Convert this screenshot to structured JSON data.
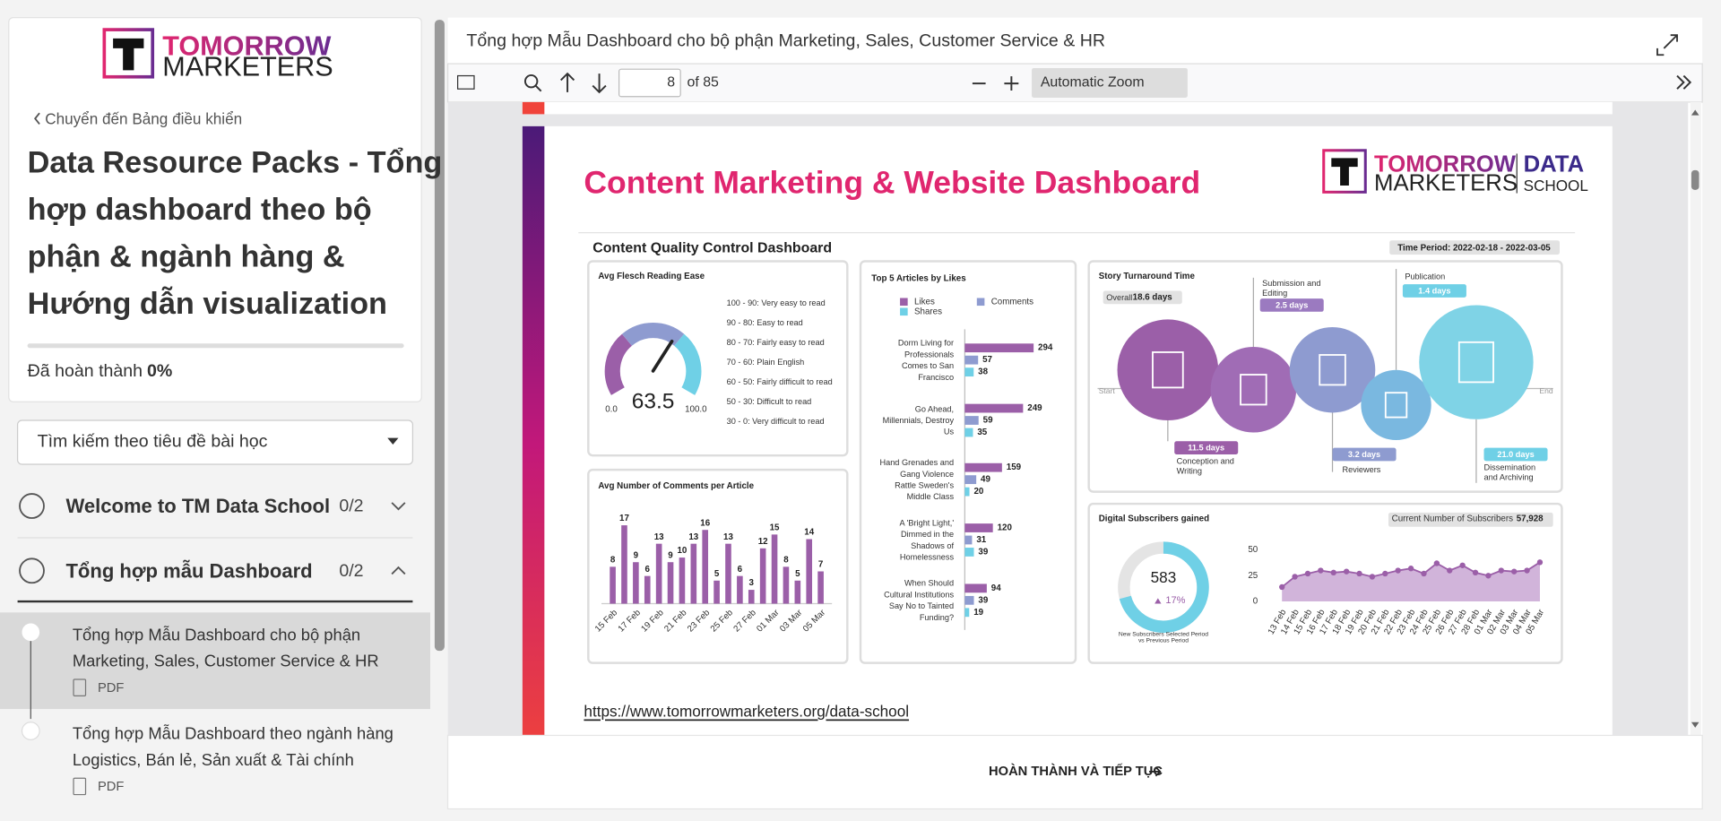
{
  "sidebar": {
    "logo": {
      "line1": "TOMORROW",
      "line2": "MARKETERS"
    },
    "back_link": "Chuyển đến Bảng điều khiển",
    "course_title": [
      "Data Resource Packs - Tổng",
      "hợp dashboard theo bộ",
      "phận & ngành hàng &",
      "Hướng dẫn visualization"
    ],
    "progress_label": "Đã hoàn thành",
    "progress_value": "0%",
    "search_placeholder": "Tìm kiếm theo tiêu đề bài học",
    "sections": [
      {
        "title": "Welcome to TM Data School",
        "count": "0/2"
      },
      {
        "title": "Tổng hợp mẫu Dashboard",
        "count": "0/2"
      }
    ],
    "lessons": [
      {
        "title": [
          "Tổng hợp Mẫu Dashboard cho bộ phận",
          "Marketing, Sales, Customer Service & HR"
        ],
        "type": "PDF"
      },
      {
        "title": [
          "Tổng hợp Mẫu Dashboard theo ngành hàng",
          "Logistics, Bán lẻ, Sản xuất & Tài chính"
        ],
        "type": "PDF"
      }
    ]
  },
  "viewer": {
    "title": "Tổng hợp Mẫu Dashboard cho bộ phận Marketing, Sales, Customer Service & HR",
    "page_number": "8",
    "page_total": "of 85",
    "zoom": "Automatic Zoom",
    "complete_button": "HOÀN THÀNH VÀ TIẾP TỤC"
  },
  "dashboard": {
    "title": "Content Marketing & Website Dashboard",
    "logo": {
      "line1": "TOMORROW",
      "line2": "MARKETERS",
      "brand1": "DATA",
      "brand2": "SCHOOL"
    },
    "subtitle": "Content Quality Control Dashboard",
    "time_period": "Time Period: 2022-02-18 - 2022-03-05",
    "story": {
      "title": "Story Turnaround Time",
      "overall_label": "Overall",
      "overall_value": "18.6 days",
      "start": "Start",
      "end": "End",
      "stages": [
        {
          "value": "11.5 days",
          "label": [
            "Conception and",
            "Writing"
          ]
        },
        {
          "value": "2.5 days",
          "label": [
            "Submission and",
            "Editing"
          ]
        },
        {
          "value": "3.2 days",
          "label": [
            "Reviewers"
          ]
        },
        {
          "value": "1.4 days",
          "label": [
            "Publication"
          ]
        },
        {
          "value": "21.0 days",
          "label": [
            "Dissemination",
            "and Archiving"
          ]
        }
      ]
    },
    "subscribers": {
      "title": "Digital Subscribers gained",
      "current_label": "Current Number of Subscribers",
      "current_value": "57,928",
      "kpi": "583",
      "change": "17%",
      "kpi_caption": [
        "New Subscribers Selected Period",
        "vs Previous Period"
      ]
    },
    "link": "https://www.tomorrowmarketers.org/data-school"
  },
  "chart_data": [
    {
      "type": "gauge",
      "title": "Avg Flesch Reading Ease",
      "value": 63.5,
      "range": [
        {
          "value": 0,
          "label": "0.0"
        },
        {
          "value": 100,
          "label": "100.0"
        }
      ],
      "scale_legend": [
        "100 - 90: Very easy to read",
        "90 - 80: Easy to read",
        "80 - 70: Fairly easy to read",
        "70 - 60: Plain English",
        "60 - 50: Fairly difficult to read",
        "50 - 30: Difficult to read",
        "30 - 0: Very difficult to read"
      ],
      "colors": [
        "#9b5fa8",
        "#8e9bd0",
        "#6fd0e6"
      ]
    },
    {
      "type": "hbar",
      "title": "Top 5 Articles by Likes",
      "categories": [
        [
          "Dorm Living for",
          "Professionals",
          "Comes to San",
          "Francisco"
        ],
        [
          "Go Ahead,",
          "Millennials, Destroy",
          "Us"
        ],
        [
          "Hand Grenades and",
          "Gang Violence",
          "Rattle Sweden's",
          "Middle Class"
        ],
        [
          "A 'Bright Light,'",
          "Dimmed in the",
          "Shadows of",
          "Homelessness"
        ],
        [
          "When Should",
          "Cultural Institutions",
          "Say No to Tainted",
          "Funding?"
        ]
      ],
      "series": [
        {
          "name": "Likes",
          "color": "#9b5fa8",
          "values": [
            294,
            249,
            159,
            120,
            94
          ]
        },
        {
          "name": "Comments",
          "color": "#8e9bd0",
          "values": [
            57,
            59,
            49,
            31,
            39
          ]
        },
        {
          "name": "Shares",
          "color": "#6fd0e6",
          "values": [
            38,
            35,
            20,
            39,
            19
          ]
        }
      ],
      "xlim": [
        0,
        300
      ]
    },
    {
      "type": "bar",
      "title": "Avg Number of Comments per Article",
      "categories": [
        "15 Feb",
        null,
        "17 Feb",
        null,
        "19 Feb",
        null,
        "21 Feb",
        null,
        "23 Feb",
        null,
        "25 Feb",
        null,
        "27 Feb",
        null,
        "01 Mar",
        null,
        "03 Mar",
        null,
        "05 Mar"
      ],
      "values": [
        8,
        17,
        9,
        6,
        13,
        9,
        10,
        13,
        16,
        5,
        13,
        6,
        3,
        12,
        15,
        8,
        5,
        14,
        7
      ],
      "color": "#9b5fa8",
      "ylim": [
        0,
        20
      ]
    },
    {
      "type": "line",
      "categories": [
        "13 Feb",
        "14 Feb",
        "15 Feb",
        "16 Feb",
        "17 Feb",
        "18 Feb",
        "19 Feb",
        "20 Feb",
        "21 Feb",
        "22 Feb",
        "23 Feb",
        "24 Feb",
        "25 Feb",
        "26 Feb",
        "27 Feb",
        "28 Feb",
        "01 Mar",
        "02 Mar",
        "03 Mar",
        "04 Mar",
        "05 Mar"
      ],
      "values": [
        14,
        24,
        27,
        30,
        28,
        29,
        27,
        24,
        27,
        30,
        32,
        27,
        37,
        30,
        35,
        28,
        25,
        30,
        29,
        30,
        38
      ],
      "color": "#9b5fa8",
      "ylim": [
        0,
        50
      ],
      "yticks": [
        0,
        25,
        50
      ]
    }
  ]
}
